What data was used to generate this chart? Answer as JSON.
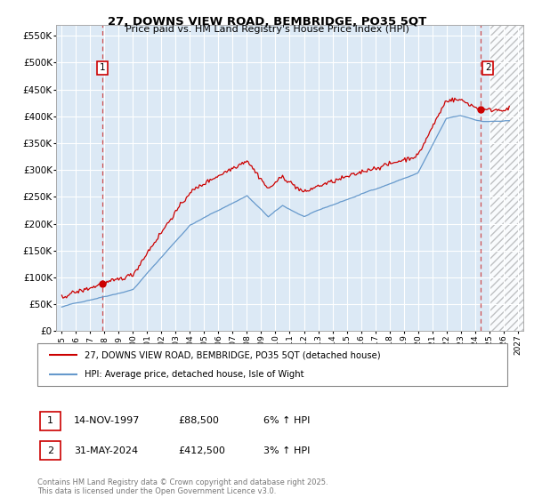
{
  "title": "27, DOWNS VIEW ROAD, BEMBRIDGE, PO35 5QT",
  "subtitle": "Price paid vs. HM Land Registry's House Price Index (HPI)",
  "ylabel_ticks": [
    0,
    50000,
    100000,
    150000,
    200000,
    250000,
    300000,
    350000,
    400000,
    450000,
    500000,
    550000
  ],
  "ylim": [
    0,
    570000
  ],
  "xlim_start": 1994.6,
  "xlim_end": 2027.4,
  "sale1_x": 1997.87,
  "sale1_y": 88500,
  "sale2_x": 2024.42,
  "sale2_y": 412500,
  "future_start": 2025.0,
  "legend_line1": "27, DOWNS VIEW ROAD, BEMBRIDGE, PO35 5QT (detached house)",
  "legend_line2": "HPI: Average price, detached house, Isle of Wight",
  "annotation1_date": "14-NOV-1997",
  "annotation1_price": "£88,500",
  "annotation1_hpi": "6% ↑ HPI",
  "annotation2_date": "31-MAY-2024",
  "annotation2_price": "£412,500",
  "annotation2_hpi": "3% ↑ HPI",
  "footer": "Contains HM Land Registry data © Crown copyright and database right 2025.\nThis data is licensed under the Open Government Licence v3.0.",
  "red_color": "#cc0000",
  "blue_color": "#6699cc",
  "bg_color": "#dce9f5",
  "grid_color": "#ffffff",
  "vline_color": "#cc3333"
}
